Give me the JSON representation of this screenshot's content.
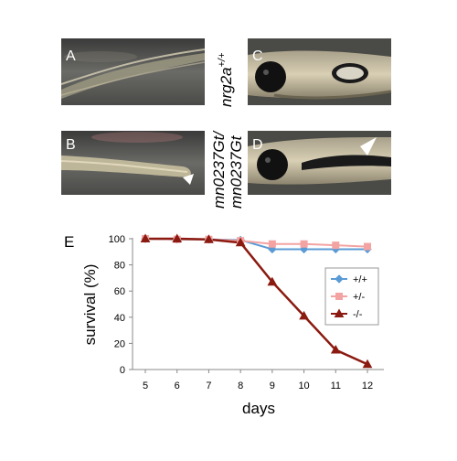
{
  "panels": {
    "A": {
      "label": "A"
    },
    "B": {
      "label": "B"
    },
    "C": {
      "label": "C"
    },
    "D": {
      "label": "D"
    },
    "E": {
      "label": "E"
    }
  },
  "genotype_labels": {
    "wildtype": {
      "base": "nrg2a",
      "superscript": "+/+"
    },
    "mutant_line1": "mn0237Gt/",
    "mutant_line2": "mn0237Gt"
  },
  "chart_data": {
    "type": "line",
    "xlabel": "days",
    "ylabel": "survival (%)",
    "x": [
      5,
      6,
      7,
      8,
      9,
      10,
      11,
      12
    ],
    "xlim": [
      5,
      12
    ],
    "ylim": [
      0,
      100
    ],
    "yticks": [
      0,
      20,
      40,
      60,
      80,
      100
    ],
    "grid": false,
    "legend": "right",
    "series": [
      {
        "name": "+/+",
        "color": "#5b9bd5",
        "marker": "diamond",
        "values": [
          100,
          99.5,
          99.5,
          99,
          92,
          92,
          92,
          92
        ]
      },
      {
        "name": "+/-",
        "color": "#f4a3a3",
        "marker": "square",
        "values": [
          100,
          99.5,
          99.5,
          98.5,
          96,
          96,
          95,
          94
        ]
      },
      {
        "name": "-/-",
        "color": "#8b1a10",
        "marker": "triangle",
        "values": [
          100,
          100,
          99.5,
          97,
          67,
          41,
          15,
          4
        ]
      }
    ]
  }
}
